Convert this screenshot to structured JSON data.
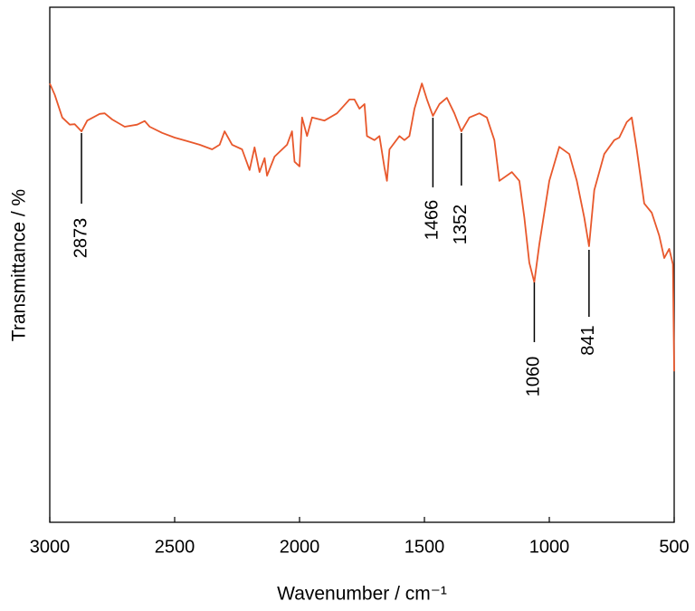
{
  "chart_data": {
    "type": "line",
    "x_label": "Wavenumber / cm⁻¹",
    "y_label": "Transmittance / %",
    "x": [
      3000,
      2980,
      2950,
      2920,
      2900,
      2873,
      2850,
      2800,
      2780,
      2750,
      2700,
      2650,
      2620,
      2600,
      2550,
      2500,
      2450,
      2400,
      2350,
      2320,
      2300,
      2270,
      2230,
      2200,
      2180,
      2160,
      2140,
      2130,
      2100,
      2050,
      2030,
      2020,
      2000,
      1990,
      1970,
      1950,
      1900,
      1850,
      1800,
      1780,
      1760,
      1740,
      1730,
      1700,
      1680,
      1660,
      1650,
      1640,
      1600,
      1580,
      1560,
      1540,
      1510,
      1490,
      1466,
      1440,
      1410,
      1380,
      1352,
      1320,
      1280,
      1250,
      1220,
      1200,
      1150,
      1120,
      1100,
      1080,
      1060,
      1040,
      1000,
      960,
      920,
      890,
      860,
      841,
      820,
      780,
      740,
      720,
      690,
      670,
      650,
      620,
      590,
      560,
      540,
      520,
      505,
      500
    ],
    "values": [
      85.2,
      83.0,
      78.6,
      77.2,
      77.3,
      75.9,
      78.0,
      79.3,
      79.4,
      78.2,
      76.8,
      77.2,
      77.9,
      76.8,
      75.6,
      74.7,
      74.0,
      73.3,
      72.4,
      73.3,
      75.9,
      73.3,
      72.4,
      68.4,
      72.8,
      68.0,
      70.7,
      67.3,
      71.0,
      73.3,
      75.9,
      70.0,
      69.1,
      78.6,
      75.0,
      78.6,
      78.0,
      79.4,
      82.1,
      82.1,
      80.3,
      81.2,
      75.0,
      74.2,
      75.0,
      68.9,
      66.3,
      72.4,
      75.0,
      74.2,
      75.0,
      80.3,
      85.2,
      82.1,
      78.9,
      81.2,
      82.4,
      79.4,
      75.9,
      78.6,
      79.4,
      78.6,
      74.2,
      66.3,
      68.0,
      66.3,
      59.2,
      50.4,
      46.6,
      54.0,
      66.3,
      72.9,
      71.5,
      66.3,
      59.2,
      53.6,
      64.5,
      71.5,
      74.2,
      74.7,
      77.7,
      78.6,
      72.4,
      61.9,
      60.1,
      55.7,
      51.3,
      53.1,
      50.1,
      29.3
    ],
    "color": "#e8582c",
    "xlim": [
      3000,
      500
    ],
    "ylim": [
      0,
      100
    ],
    "xticks": [
      3000,
      2500,
      2000,
      1500,
      1000,
      500
    ],
    "annotations": [
      {
        "x": 2873
      },
      {
        "x": 1466
      },
      {
        "x": 1352
      },
      {
        "x": 1060
      },
      {
        "x": 841
      }
    ]
  }
}
